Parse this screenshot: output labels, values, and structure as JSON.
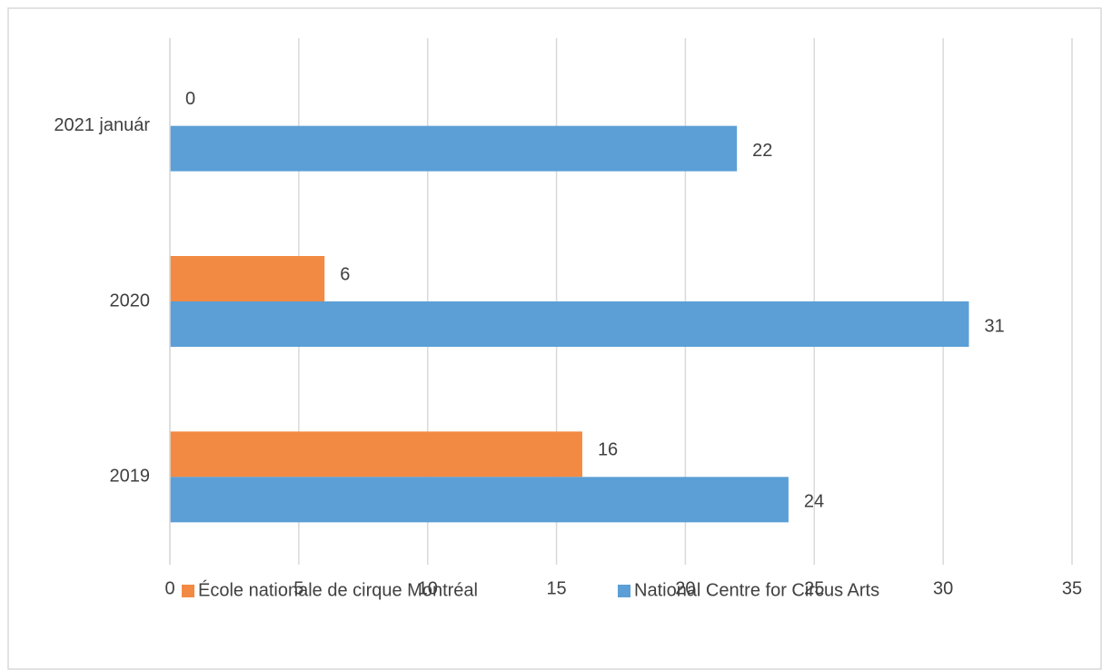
{
  "chart_data": {
    "type": "bar",
    "orientation": "horizontal",
    "categories": [
      "2019",
      "2020",
      "2021 január"
    ],
    "series": [
      {
        "name": "École nationale de cirque Montréal",
        "color": "#f28a43",
        "values": [
          16,
          6,
          0
        ]
      },
      {
        "name": "National Centre for Circus Arts",
        "color": "#5b9fd6",
        "values": [
          24,
          31,
          22
        ]
      }
    ],
    "xlim": [
      0,
      35
    ],
    "xticks": [
      0,
      5,
      10,
      15,
      20,
      25,
      30,
      35
    ],
    "grid": true,
    "legend": "bottom"
  }
}
